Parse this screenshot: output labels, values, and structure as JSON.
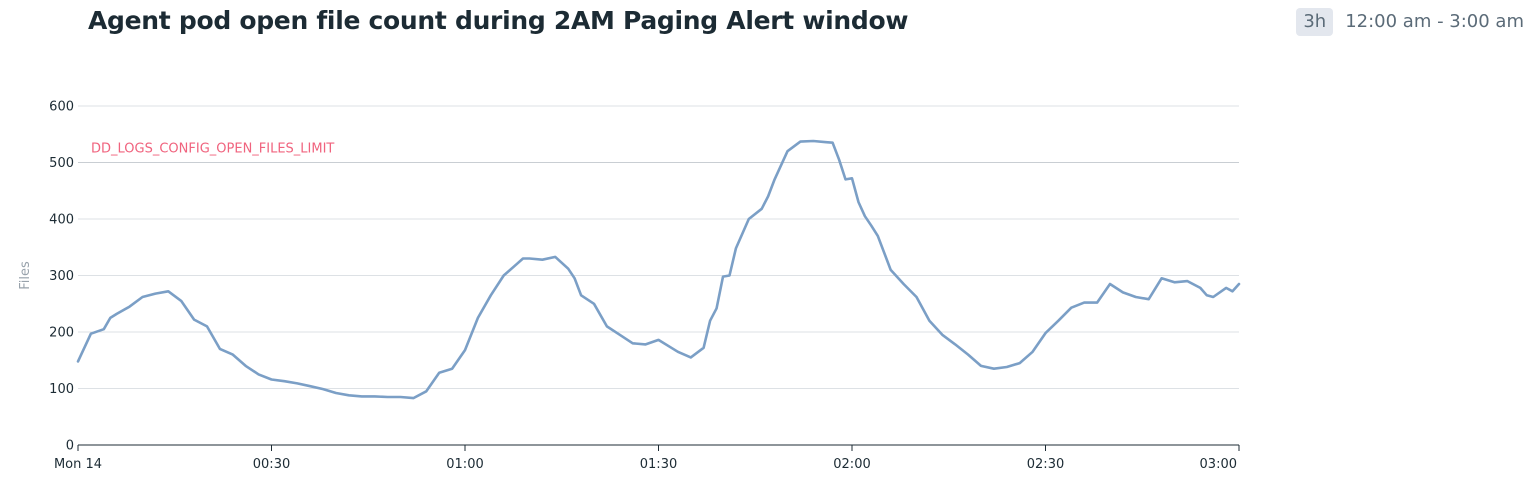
{
  "header": {
    "title": "Agent pod open file count during 2AM Paging Alert window",
    "time_badge": "3h",
    "time_range": "12:00 am - 3:00 am"
  },
  "chart_data": {
    "type": "line",
    "title": "Agent pod open file count during 2AM Paging Alert window",
    "ylabel": "Files",
    "xlabel": "",
    "x_unit": "minutes",
    "xlim": [
      0,
      180
    ],
    "ylim": [
      0,
      600
    ],
    "y_ticks": [
      0,
      100,
      200,
      300,
      400,
      500,
      600
    ],
    "x_ticks": [
      {
        "value": 0,
        "label": "Mon 14"
      },
      {
        "value": 30,
        "label": "00:30"
      },
      {
        "value": 60,
        "label": "01:00"
      },
      {
        "value": 90,
        "label": "01:30"
      },
      {
        "value": 120,
        "label": "02:00"
      },
      {
        "value": 150,
        "label": "02:30"
      },
      {
        "value": 180,
        "label": "03:00"
      }
    ],
    "grid": true,
    "line_color": "#7b9fc6",
    "annotation": {
      "label": "DD_LOGS_CONFIG_OPEN_FILES_LIMIT",
      "y": 500,
      "color": "#f0637e"
    },
    "series": [
      {
        "x": [
          0,
          2,
          4,
          5,
          6,
          8,
          10,
          12,
          14,
          16,
          18,
          20,
          22,
          24,
          26,
          28,
          30,
          32,
          34,
          36,
          38,
          40,
          42,
          44,
          46,
          48,
          50,
          52,
          54,
          56,
          58,
          60,
          62,
          64,
          66,
          68,
          69,
          70,
          72,
          74,
          76,
          77,
          78,
          80,
          82,
          84,
          86,
          88,
          90,
          92,
          93,
          95,
          97,
          98,
          99,
          100,
          101,
          102,
          104,
          106,
          107,
          108,
          110,
          112,
          114,
          116,
          117,
          118,
          119,
          120,
          121,
          122,
          123,
          124,
          126,
          128,
          130,
          132,
          134,
          136,
          138,
          140,
          142,
          144,
          146,
          148,
          150,
          152,
          154,
          156,
          158,
          160,
          162,
          164,
          166,
          168,
          170,
          172,
          174,
          175,
          176,
          178,
          179,
          180
        ],
        "values": [
          148,
          197,
          205,
          225,
          232,
          245,
          262,
          268,
          272,
          255,
          222,
          210,
          170,
          160,
          140,
          125,
          116,
          113,
          109,
          104,
          99,
          92,
          88,
          86,
          86,
          85,
          85,
          83,
          95,
          128,
          135,
          168,
          225,
          265,
          300,
          320,
          330,
          330,
          328,
          333,
          312,
          295,
          265,
          250,
          210,
          195,
          180,
          178,
          186,
          172,
          165,
          155,
          172,
          220,
          242,
          298,
          300,
          348,
          400,
          418,
          440,
          470,
          520,
          537,
          538,
          536,
          535,
          505,
          470,
          472,
          430,
          405,
          388,
          370,
          310,
          285,
          262,
          220,
          195,
          178,
          160,
          140,
          135,
          138,
          145,
          165,
          198,
          220,
          243,
          252,
          252,
          285,
          270,
          262,
          258,
          295,
          288,
          290,
          278,
          265,
          262,
          278,
          272,
          285
        ]
      }
    ]
  }
}
